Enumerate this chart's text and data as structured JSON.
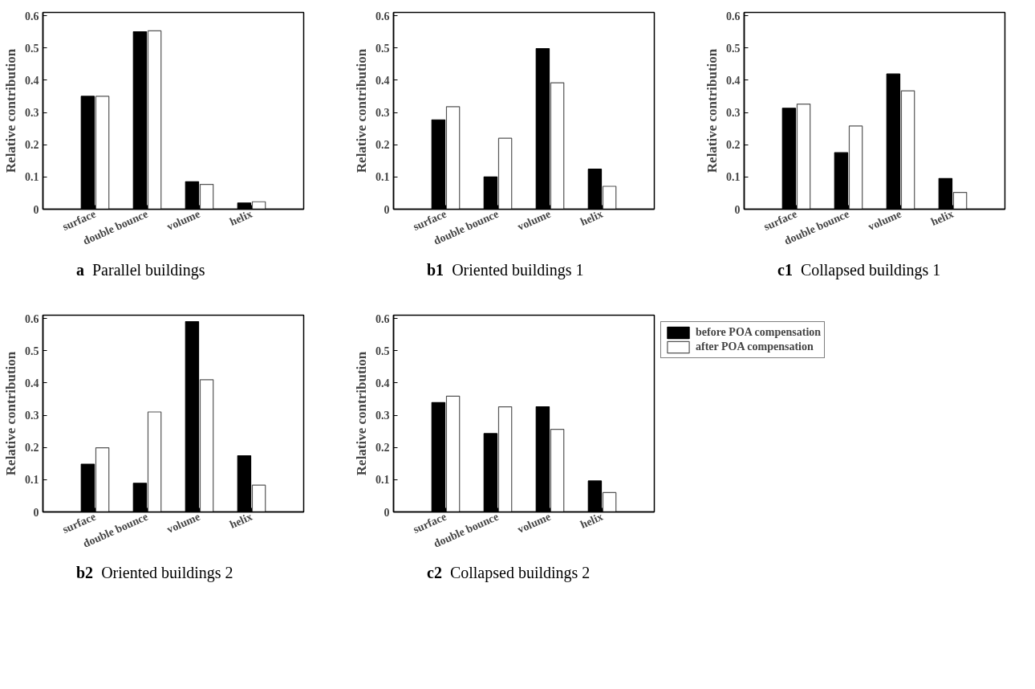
{
  "chart_data": [
    {
      "type": "bar",
      "title": "a  Parallel buildings",
      "ylabel": "Relative contribution",
      "categories": [
        "surface",
        "double bounce",
        "volume",
        "helix"
      ],
      "ylim": [
        0,
        0.61
      ],
      "yticks": [
        0,
        0.1,
        0.2,
        0.3,
        0.4,
        0.5,
        0.6
      ],
      "grid": false,
      "legend": false,
      "series": [
        {
          "color": "#000000",
          "values": [
            0.35,
            0.55,
            0.085,
            0.019
          ]
        },
        {
          "color": "#ffffff",
          "values": [
            0.35,
            0.553,
            0.077,
            0.023
          ]
        }
      ]
    },
    {
      "type": "bar",
      "title": "b1  Oriented buildings 1",
      "ylabel": "Relative contribution",
      "categories": [
        "surface",
        "double bounce",
        "volume",
        "helix"
      ],
      "ylim": [
        0,
        0.61
      ],
      "yticks": [
        0,
        0.1,
        0.2,
        0.3,
        0.4,
        0.5,
        0.6
      ],
      "grid": false,
      "legend": false,
      "series": [
        {
          "color": "#000000",
          "values": [
            0.277,
            0.1,
            0.498,
            0.124
          ]
        },
        {
          "color": "#ffffff",
          "values": [
            0.318,
            0.22,
            0.392,
            0.071
          ]
        }
      ]
    },
    {
      "type": "bar",
      "title": "c1  Collapsed buildings 1",
      "ylabel": "Relative contribution",
      "categories": [
        "surface",
        "double bounce",
        "volume",
        "helix"
      ],
      "ylim": [
        0,
        0.61
      ],
      "yticks": [
        0,
        0.1,
        0.2,
        0.3,
        0.4,
        0.5,
        0.6
      ],
      "grid": false,
      "legend": false,
      "series": [
        {
          "color": "#000000",
          "values": [
            0.313,
            0.175,
            0.419,
            0.095
          ]
        },
        {
          "color": "#ffffff",
          "values": [
            0.326,
            0.258,
            0.367,
            0.052
          ]
        }
      ]
    },
    {
      "type": "bar",
      "title": "b2  Oriented buildings 2",
      "ylabel": "Relative contribution",
      "categories": [
        "surface",
        "double bounce",
        "volume",
        "helix"
      ],
      "ylim": [
        0,
        0.61
      ],
      "yticks": [
        0,
        0.1,
        0.2,
        0.3,
        0.4,
        0.5,
        0.6
      ],
      "grid": false,
      "legend": false,
      "series": [
        {
          "color": "#000000",
          "values": [
            0.148,
            0.089,
            0.59,
            0.174
          ]
        },
        {
          "color": "#ffffff",
          "values": [
            0.199,
            0.31,
            0.41,
            0.083
          ]
        }
      ]
    },
    {
      "type": "bar",
      "title": "c2  Collapsed buildings 2",
      "ylabel": "Relative contribution",
      "categories": [
        "surface",
        "double bounce",
        "volume",
        "helix"
      ],
      "ylim": [
        0,
        0.61
      ],
      "yticks": [
        0,
        0.1,
        0.2,
        0.3,
        0.4,
        0.5,
        0.6
      ],
      "grid": false,
      "legend": "right",
      "series": [
        {
          "name": "before POA compensation",
          "color": "#000000",
          "values": [
            0.339,
            0.243,
            0.326,
            0.096
          ]
        },
        {
          "name": "after POA compensation",
          "color": "#ffffff",
          "values": [
            0.359,
            0.326,
            0.256,
            0.06
          ]
        }
      ]
    }
  ]
}
